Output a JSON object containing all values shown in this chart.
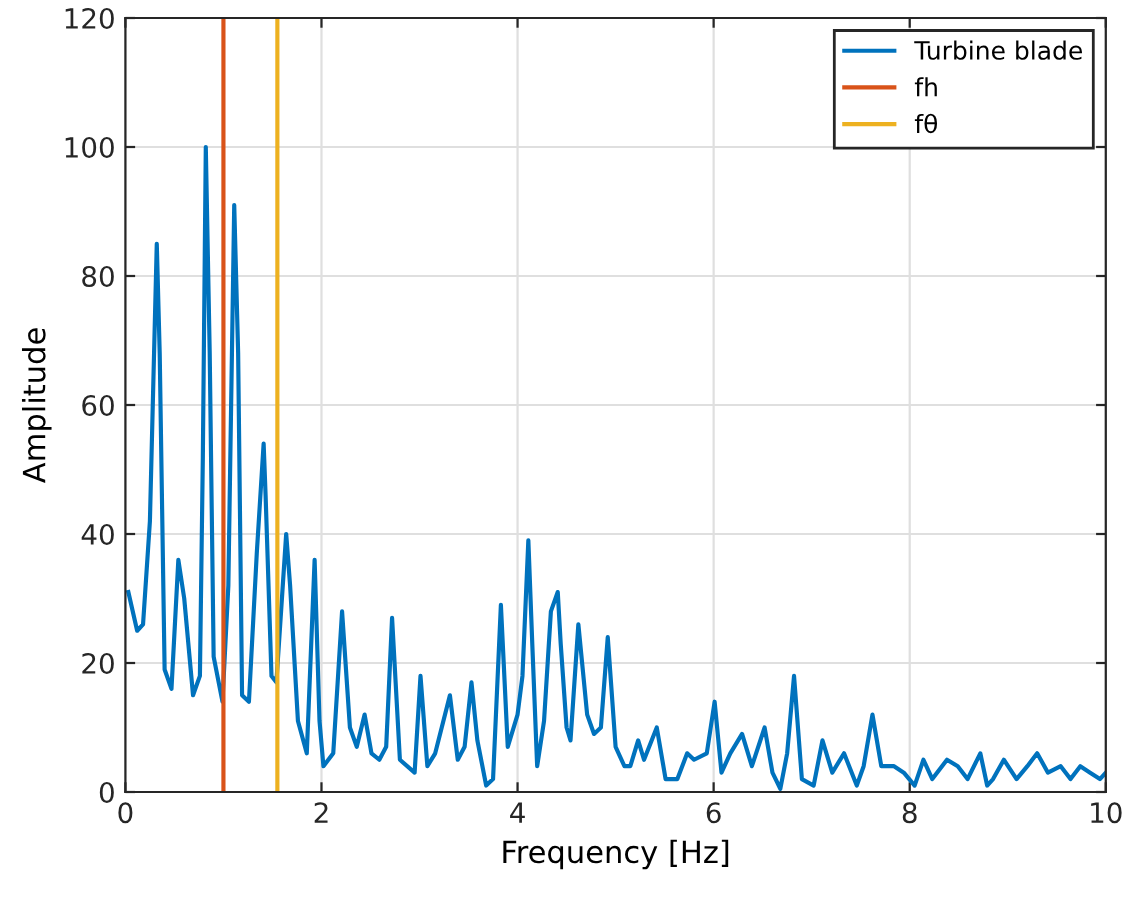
{
  "chart_data": {
    "type": "line",
    "xlabel": "Frequency [Hz]",
    "ylabel": "Amplitude",
    "series": [
      {
        "name": "Turbine blade",
        "color": "#0072bd",
        "x": [
          0.03,
          0.12,
          0.18,
          0.25,
          0.32,
          0.35,
          0.4,
          0.47,
          0.54,
          0.6,
          0.69,
          0.76,
          0.79,
          0.82,
          0.86,
          0.9,
          0.99,
          1.05,
          1.11,
          1.15,
          1.19,
          1.26,
          1.34,
          1.41,
          1.43,
          1.49,
          1.54,
          1.64,
          1.68,
          1.76,
          1.85,
          1.93,
          1.98,
          2.02,
          2.12,
          2.21,
          2.29,
          2.36,
          2.44,
          2.51,
          2.59,
          2.66,
          2.72,
          2.8,
          2.95,
          3.01,
          3.08,
          3.16,
          3.31,
          3.39,
          3.46,
          3.53,
          3.59,
          3.68,
          3.75,
          3.83,
          3.9,
          4.0,
          4.05,
          4.11,
          4.15,
          4.2,
          4.27,
          4.34,
          4.41,
          4.44,
          4.5,
          4.54,
          4.62,
          4.71,
          4.78,
          4.85,
          4.92,
          5.0,
          5.09,
          5.15,
          5.23,
          5.29,
          5.42,
          5.51,
          5.63,
          5.73,
          5.8,
          5.93,
          6.01,
          6.08,
          6.17,
          6.29,
          6.39,
          6.52,
          6.6,
          6.68,
          6.75,
          6.82,
          6.9,
          7.02,
          7.11,
          7.21,
          7.33,
          7.46,
          7.53,
          7.62,
          7.71,
          7.84,
          7.94,
          8.05,
          8.14,
          8.23,
          8.38,
          8.49,
          8.59,
          8.72,
          8.79,
          8.85,
          8.96,
          9.09,
          9.2,
          9.3,
          9.41,
          9.54,
          9.64,
          9.74,
          9.84,
          9.94,
          10.0
        ],
        "values": [
          31,
          25,
          26,
          42,
          85,
          68,
          19,
          16,
          36,
          30,
          15,
          18,
          52,
          100,
          68,
          21,
          14,
          32,
          91,
          68,
          15,
          14,
          37,
          54,
          46,
          18,
          17,
          40,
          32,
          11,
          6,
          36,
          11,
          4,
          6,
          28,
          10,
          7,
          12,
          6,
          5,
          7,
          27,
          5,
          3,
          18,
          4,
          6,
          15,
          5,
          7,
          17,
          8,
          1,
          2,
          29,
          7,
          12,
          18,
          39,
          23,
          4,
          11,
          28,
          31,
          23,
          10,
          8,
          26,
          12,
          9,
          10,
          24,
          7,
          4,
          4,
          8,
          5,
          10,
          2,
          2,
          6,
          5,
          6,
          14,
          3,
          6,
          9,
          4,
          10,
          3,
          0.5,
          6,
          18,
          2,
          1,
          8,
          3,
          6,
          1,
          4,
          12,
          4,
          4,
          3,
          1,
          5,
          2,
          5,
          4,
          2,
          6,
          1,
          2,
          5,
          2,
          4,
          6,
          3,
          4,
          2,
          4,
          3,
          2,
          3
        ]
      },
      {
        "name": "fh",
        "color": "#d95319",
        "x": [
          1.0,
          1.0
        ],
        "values": [
          0,
          120
        ]
      },
      {
        "name": "fθ",
        "color": "#edb120",
        "x": [
          1.55,
          1.55
        ],
        "values": [
          0,
          120
        ]
      }
    ],
    "xlim": [
      0,
      10
    ],
    "ylim": [
      0,
      120
    ],
    "xticks": [
      0,
      2,
      4,
      6,
      8,
      10
    ],
    "yticks": [
      0,
      20,
      40,
      60,
      80,
      100,
      120
    ],
    "grid": true,
    "legend": "top right"
  }
}
